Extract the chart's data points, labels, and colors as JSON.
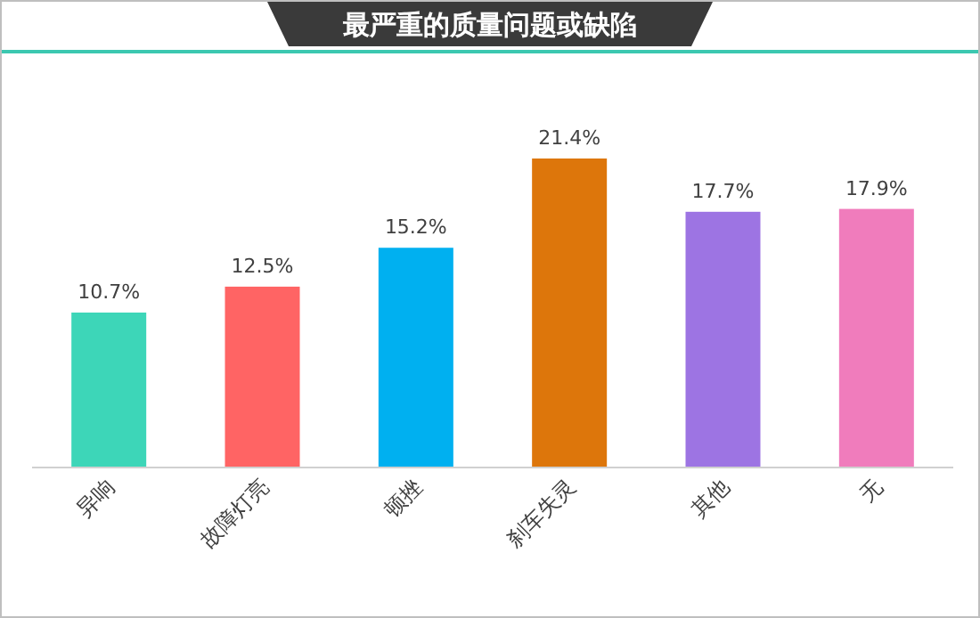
{
  "chart_data": {
    "type": "bar",
    "title": "最严重的质量问题或缺陷",
    "categories": [
      "异响",
      "故障灯亮",
      "顿挫",
      "刹车失灵",
      "其他",
      "无"
    ],
    "values": [
      10.7,
      12.5,
      15.2,
      21.4,
      17.7,
      17.9
    ],
    "value_labels": [
      "10.7%",
      "12.5%",
      "15.2%",
      "21.4%",
      "17.7%",
      "17.9%"
    ],
    "colors": [
      "#3dd6b8",
      "#ff6464",
      "#00b0f0",
      "#dd760b",
      "#9d74e3",
      "#f07cbc"
    ]
  }
}
